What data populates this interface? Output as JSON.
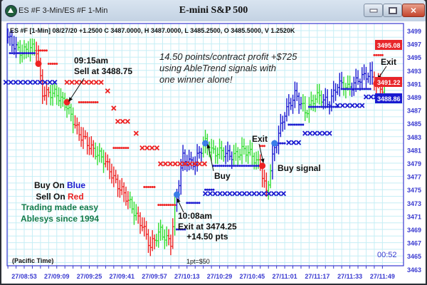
{
  "window": {
    "title": "ES #F 3-Min/ES #F 1-Min",
    "chart_title": "E-mini S&P 500",
    "buttons": [
      "minimize",
      "maximize",
      "close"
    ]
  },
  "header_info": "ES #F [1-Min] 08/27/20  +1.2500 C 3487.0000, H 3487.0000, L 3485.2500, O 3485.5000, V 1.2520K",
  "annotations": {
    "sell_time": "09:15am",
    "sell_price": "Sell at 3488.75",
    "exit_time": "10:08am",
    "exit_price": "Exit at 3474.25",
    "exit_pts": "+14.50 pts",
    "buy": "Buy",
    "exit1": "Exit",
    "exit2": "Exit",
    "buy_signal": "Buy signal",
    "profit_line1": "14.50 points/contract profit +$725",
    "profit_line2": "using AbleTrend signals with",
    "profit_line3": "one winner alone!",
    "legend_buy_prefix": "Buy On ",
    "legend_buy_color": "Blue",
    "legend_sell_prefix": "Sell On ",
    "legend_sell_color": "Red",
    "tagline1": "Trading made easy",
    "tagline2": "Ablesys since 1994",
    "timezone": "(Pacific Time)",
    "point_value": "1pt=$50",
    "countdown": "00:52"
  },
  "price_tags": [
    {
      "label": "3495.08",
      "color": "#e8262a"
    },
    {
      "label": "3491.22",
      "color": "#e8262a"
    },
    {
      "label": "3488.86",
      "color": "#1a1ad0"
    }
  ],
  "colors": {
    "up": "#1a1ad0",
    "neutral": "#33dd33",
    "down": "#ee2222",
    "grid": "#c6eef5",
    "axis": "#3a3ad0"
  },
  "chart_data": {
    "type": "ohlc-bar",
    "bar_interval": "1-Min",
    "date": "08/27/20",
    "x_ticks": [
      "27/08:53",
      "27/09:09",
      "27/09:25",
      "27/09:41",
      "27/09:57",
      "27/10:13",
      "27/10:29",
      "27/10:45",
      "27/11:01",
      "27/11:17",
      "27/11:33",
      "27/11:49"
    ],
    "y_ticks": [
      3499,
      3497,
      3495,
      3493,
      3491,
      3489,
      3487,
      3485,
      3483,
      3481,
      3479,
      3477,
      3475,
      3473,
      3471,
      3469,
      3467,
      3465,
      3463
    ],
    "ylim": [
      3463,
      3499
    ],
    "xlim": [
      "08:45",
      "11:50"
    ],
    "grid": true,
    "price_path": [
      [
        "08:45",
        3497.5
      ],
      [
        "08:52",
        3496
      ],
      [
        "08:59",
        3496
      ],
      [
        "09:00",
        3494
      ],
      [
        "09:02",
        3490
      ],
      [
        "09:09",
        3489
      ],
      [
        "09:14",
        3488
      ],
      [
        "09:20",
        3483
      ],
      [
        "09:25",
        3482
      ],
      [
        "09:30",
        3480
      ],
      [
        "09:35",
        3478
      ],
      [
        "09:39",
        3476
      ],
      [
        "09:44",
        3473
      ],
      [
        "09:51",
        3470
      ],
      [
        "09:55",
        3466
      ],
      [
        "10:00",
        3469
      ],
      [
        "10:05",
        3467
      ],
      [
        "10:08",
        3474
      ],
      [
        "10:11",
        3480
      ],
      [
        "10:17",
        3479
      ],
      [
        "10:22",
        3482
      ],
      [
        "10:26",
        3481
      ],
      [
        "10:33",
        3480
      ],
      [
        "10:40",
        3481
      ],
      [
        "10:49",
        3479
      ],
      [
        "10:52",
        3474.5
      ],
      [
        "10:56",
        3481
      ],
      [
        "11:01",
        3487
      ],
      [
        "11:06",
        3489
      ],
      [
        "11:11",
        3487
      ],
      [
        "11:16",
        3489
      ],
      [
        "11:22",
        3488
      ],
      [
        "11:27",
        3491
      ],
      [
        "11:32",
        3490
      ],
      [
        "11:37",
        3492
      ],
      [
        "11:43",
        3492
      ],
      [
        "11:46",
        3491
      ],
      [
        "11:50",
        3490.5
      ]
    ],
    "bar_colors": [
      [
        "08:45",
        "08:50",
        "up"
      ],
      [
        "08:50",
        "08:59",
        "neutral"
      ],
      [
        "08:59",
        "09:06",
        "down"
      ],
      [
        "09:06",
        "09:18",
        "neutral"
      ],
      [
        "09:18",
        "09:28",
        "down"
      ],
      [
        "09:28",
        "09:33",
        "neutral"
      ],
      [
        "09:33",
        "09:45",
        "down"
      ],
      [
        "09:45",
        "09:49",
        "neutral"
      ],
      [
        "09:49",
        "09:58",
        "down"
      ],
      [
        "09:58",
        "10:04",
        "neutral"
      ],
      [
        "10:04",
        "10:07",
        "down"
      ],
      [
        "10:07",
        "10:08",
        "neutral"
      ],
      [
        "10:08",
        "10:21",
        "up"
      ],
      [
        "10:21",
        "10:32",
        "neutral"
      ],
      [
        "10:32",
        "10:36",
        "up"
      ],
      [
        "10:36",
        "10:49",
        "neutral"
      ],
      [
        "10:49",
        "10:53",
        "down"
      ],
      [
        "10:53",
        "10:55",
        "neutral"
      ],
      [
        "10:55",
        "11:10",
        "up"
      ],
      [
        "11:10",
        "11:20",
        "neutral"
      ],
      [
        "11:20",
        "11:30",
        "up"
      ],
      [
        "11:30",
        "11:34",
        "neutral"
      ],
      [
        "11:34",
        "11:45",
        "up"
      ],
      [
        "11:45",
        "11:50",
        "down"
      ]
    ],
    "signals": [
      {
        "time": "09:00",
        "price": 3494,
        "type": "sell",
        "color": "down"
      },
      {
        "time": "09:14",
        "price": 3488.2,
        "type": "sell",
        "color": "down"
      },
      {
        "time": "10:08",
        "price": 3474.25,
        "type": "buy",
        "color": "up"
      },
      {
        "time": "10:22",
        "price": 3482,
        "type": "buy",
        "color": "up"
      },
      {
        "time": "10:50",
        "price": 3478.6,
        "type": "exit",
        "color": "down"
      },
      {
        "time": "10:56",
        "price": 3482,
        "type": "buy",
        "color": "up"
      },
      {
        "time": "11:46",
        "price": 3491,
        "type": "exit",
        "color": "down"
      }
    ],
    "stop_dots": [
      [
        "09:00",
        "09:04",
        3496,
        "down"
      ],
      [
        "09:05",
        "09:09",
        3494,
        "down"
      ],
      [
        "09:20",
        "09:29",
        3488.2,
        "down"
      ],
      [
        "09:37",
        "09:44",
        3481.3,
        "down"
      ],
      [
        "09:52",
        "09:57",
        3475.4,
        "down"
      ],
      [
        "09:59",
        "10:07",
        3472.7,
        "down"
      ],
      [
        "10:49",
        "10:51",
        3481.6,
        "down"
      ],
      [
        "11:45",
        "11:49",
        3495.3,
        "down"
      ],
      [
        "08:46",
        "08:58",
        3495.6,
        "up"
      ],
      [
        "10:08",
        "10:12",
        3469,
        "up"
      ],
      [
        "10:13",
        "10:19",
        3473,
        "up"
      ],
      [
        "10:22",
        "10:26",
        3475,
        "up"
      ],
      [
        "10:26",
        "10:49",
        3478.6,
        "up"
      ],
      [
        "10:56",
        "11:01",
        3482,
        "up"
      ],
      [
        "11:03",
        "11:10",
        3484.8,
        "up"
      ],
      [
        "11:13",
        "11:27",
        3487.5,
        "up"
      ],
      [
        "11:29",
        "11:43",
        3490.2,
        "up"
      ]
    ],
    "stop_x": [
      [
        "09:14",
        "09:31",
        3491.2,
        "down"
      ],
      [
        "09:34",
        "09:34",
        3489.9,
        "down"
      ],
      [
        "09:37",
        "09:37",
        3487.3,
        "down"
      ],
      [
        "09:39",
        "09:46",
        3485.3,
        "down"
      ],
      [
        "09:48",
        "09:48",
        3483.5,
        "down"
      ],
      [
        "09:51",
        "09:59",
        3481.3,
        "down"
      ],
      [
        "10:00",
        "10:22",
        3478.9,
        "down"
      ],
      [
        "08:44",
        "09:09",
        3491.2,
        "up"
      ],
      [
        "10:22",
        "11:01",
        3474.4,
        "up"
      ],
      [
        "11:03",
        "11:09",
        3482.1,
        "up"
      ],
      [
        "11:11",
        "11:25",
        3483.5,
        "up"
      ],
      [
        "11:27",
        "11:39",
        3487.7,
        "up"
      ],
      [
        "11:41",
        "11:48",
        3489,
        "up"
      ]
    ]
  }
}
